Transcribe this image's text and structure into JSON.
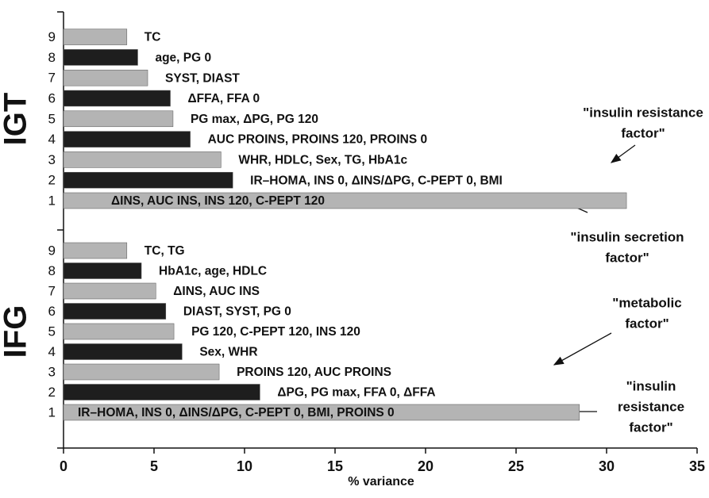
{
  "chart_data": [
    {
      "type": "bar",
      "title": "IGT",
      "categories": [
        "1",
        "2",
        "3",
        "4",
        "5",
        "6",
        "7",
        "8",
        "9"
      ],
      "values": [
        31.1,
        9.35,
        8.7,
        7.0,
        6.05,
        5.9,
        4.65,
        4.1,
        3.5
      ],
      "bar_labels": [
        "ΔINS, AUC INS, INS 120, C-PEPT 120",
        "IR–HOMA, INS 0, ΔINS/ΔPG, C-PEPT 0, BMI",
        "WHR, HDLC, Sex, TG, HbA1c",
        "AUC PROINS, PROINS 120, PROINS 0",
        "PG max, ΔPG, PG 120",
        "ΔFFA, FFA 0",
        "SYST, DIAST",
        "age, PG 0",
        "TC"
      ],
      "colors": [
        "#b4b4b4",
        "#1e1e1e"
      ],
      "annotations": [
        [
          "\"insulin resistance",
          "factor\""
        ],
        [
          "\"insulin secretion",
          "factor\""
        ]
      ]
    },
    {
      "type": "bar",
      "title": "IFG",
      "categories": [
        "1",
        "2",
        "3",
        "4",
        "5",
        "6",
        "7",
        "8",
        "9"
      ],
      "values": [
        28.5,
        10.85,
        8.6,
        6.55,
        6.1,
        5.65,
        5.1,
        4.3,
        3.5
      ],
      "bar_labels": [
        "IR–HOMA, INS 0, ΔINS/ΔPG, C-PEPT 0, BMI, PROINS 0",
        "ΔPG, PG max, FFA 0, ΔFFA",
        "PROINS 120, AUC PROINS",
        "Sex, WHR",
        "PG 120, C-PEPT 120, INS 120",
        "DIAST, SYST, PG 0",
        "ΔINS, AUC INS",
        "HbA1c, age, HDLC",
        "TC, TG"
      ],
      "colors": [
        "#b4b4b4",
        "#1e1e1e"
      ],
      "annotations": [
        [
          "\"metabolic",
          "factor\""
        ],
        [
          "\"insulin",
          "resistance",
          "factor\""
        ]
      ],
      "xlabel": "% variance",
      "xlim": [
        0,
        35
      ],
      "xticks": [
        0,
        5,
        10,
        15,
        20,
        25,
        30,
        35
      ]
    }
  ]
}
